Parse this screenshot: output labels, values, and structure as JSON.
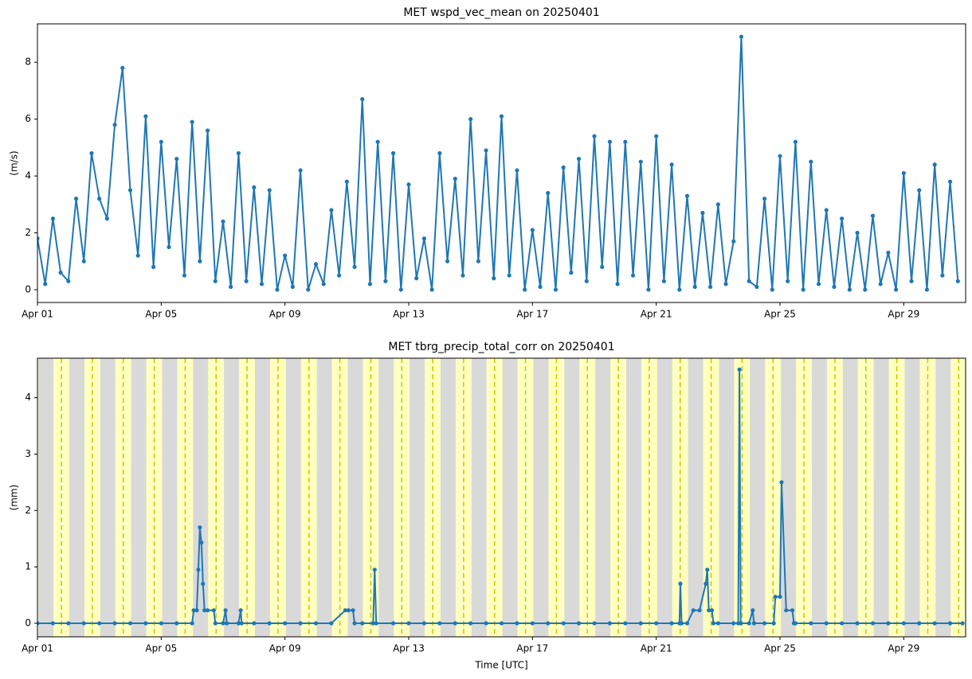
{
  "chart_data": [
    {
      "type": "line",
      "title": "MET wspd_vec_mean on 20250401",
      "ylabel": "(m/s)",
      "color": "#1f77b4",
      "x": [
        1,
        1.25,
        1.5,
        1.75,
        2,
        2.25,
        2.5,
        2.75,
        3,
        3.25,
        3.5,
        3.75,
        4,
        4.25,
        4.5,
        4.75,
        5,
        5.25,
        5.5,
        5.75,
        6,
        6.25,
        6.5,
        6.75,
        7,
        7.25,
        7.5,
        7.75,
        8,
        8.25,
        8.5,
        8.75,
        9,
        9.25,
        9.5,
        9.75,
        10,
        10.25,
        10.5,
        10.75,
        11,
        11.25,
        11.5,
        11.75,
        12,
        12.25,
        12.5,
        12.75,
        13,
        13.25,
        13.5,
        13.75,
        14,
        14.25,
        14.5,
        14.75,
        15,
        15.25,
        15.5,
        15.75,
        16,
        16.25,
        16.5,
        16.75,
        17,
        17.25,
        17.5,
        17.75,
        18,
        18.25,
        18.5,
        18.75,
        19,
        19.25,
        19.5,
        19.75,
        20,
        20.25,
        20.5,
        20.75,
        21,
        21.25,
        21.5,
        21.75,
        22,
        22.25,
        22.5,
        22.75,
        23,
        23.25,
        23.5,
        23.75,
        24,
        24.25,
        24.5,
        24.75,
        25,
        25.25,
        25.5,
        25.75,
        26,
        26.25,
        26.5,
        26.75,
        27,
        27.25,
        27.5,
        27.75,
        28,
        28.25,
        28.5,
        28.75,
        29,
        29.25,
        29.5,
        29.75,
        30,
        30.25,
        30.5,
        30.75
      ],
      "values": [
        1.8,
        0.2,
        2.5,
        0.6,
        0.3,
        3.2,
        1.0,
        4.8,
        3.2,
        2.5,
        5.8,
        7.8,
        3.5,
        1.2,
        6.1,
        0.8,
        5.2,
        1.5,
        4.6,
        0.5,
        5.9,
        1.0,
        5.6,
        0.3,
        2.4,
        0.1,
        4.8,
        0.3,
        3.6,
        0.2,
        3.5,
        0.0,
        1.2,
        0.1,
        4.2,
        0.0,
        0.9,
        0.2,
        2.8,
        0.5,
        3.8,
        0.8,
        6.7,
        0.2,
        5.2,
        0.3,
        4.8,
        0.0,
        3.7,
        0.4,
        1.8,
        0.0,
        4.8,
        1.0,
        3.9,
        0.5,
        6.0,
        1.0,
        4.9,
        0.4,
        6.1,
        0.5,
        4.2,
        0.0,
        2.1,
        0.1,
        3.4,
        0.0,
        4.3,
        0.6,
        4.6,
        0.3,
        5.4,
        0.8,
        5.2,
        0.2,
        5.2,
        0.5,
        4.5,
        0.0,
        5.4,
        0.3,
        4.4,
        0.0,
        3.3,
        0.1,
        2.7,
        0.1,
        3.0,
        0.2,
        1.7,
        8.9,
        0.3,
        0.1,
        3.2,
        0.0,
        4.7,
        0.3,
        5.2,
        0.0,
        4.5,
        0.2,
        2.8,
        0.1,
        2.5,
        0.0,
        2.0,
        0.0,
        2.6,
        0.2,
        1.3,
        0.0,
        4.1,
        0.3,
        3.5,
        0.0,
        4.4,
        0.5,
        3.8,
        0.3
      ],
      "xlim": [
        1,
        31
      ],
      "xticks": [
        {
          "value": 1,
          "label": "Apr 01"
        },
        {
          "value": 5,
          "label": "Apr 05"
        },
        {
          "value": 9,
          "label": "Apr 09"
        },
        {
          "value": 13,
          "label": "Apr 13"
        },
        {
          "value": 17,
          "label": "Apr 17"
        },
        {
          "value": 21,
          "label": "Apr 21"
        },
        {
          "value": 25,
          "label": "Apr 25"
        },
        {
          "value": 29,
          "label": "Apr 29"
        }
      ],
      "ylim": [
        -0.45,
        9.35
      ],
      "yticks": [
        0,
        2,
        4,
        6,
        8
      ]
    },
    {
      "type": "line",
      "title": "MET tbrg_precip_total_corr on 20250401",
      "ylabel": "(mm)",
      "xlabel": "Time [UTC]",
      "color": "#1f77b4",
      "night_color": "#d9d9d9",
      "day_color": "#ffffc0",
      "noon_color": "#c8c800",
      "sunrise_hour": 12.4,
      "sunset_hour": 24.7,
      "solar_noon_hour": 18.6,
      "x": [
        1,
        1.5,
        2,
        2.5,
        3,
        3.5,
        4,
        4.5,
        5,
        5.5,
        6,
        6.05,
        6.15,
        6.2,
        6.25,
        6.3,
        6.35,
        6.4,
        6.5,
        6.7,
        6.75,
        7,
        7.08,
        7.12,
        7.5,
        7.57,
        7.6,
        8,
        8.5,
        9,
        9.5,
        10,
        10.5,
        10.95,
        11.05,
        11.2,
        11.25,
        11.5,
        11.85,
        11.9,
        11.95,
        12.5,
        13,
        13.5,
        14,
        14.5,
        15,
        15.5,
        16,
        16.5,
        17,
        17.5,
        18,
        18.5,
        19,
        19.5,
        20,
        20.5,
        21,
        21.5,
        21.75,
        21.78,
        21.82,
        22,
        22.2,
        22.4,
        22.6,
        22.65,
        22.7,
        22.8,
        22.85,
        23,
        23.5,
        23.65,
        23.69,
        23.73,
        24,
        24.12,
        24.16,
        24.5,
        24.8,
        24.85,
        25.0,
        25.05,
        25.2,
        25.4,
        25.45,
        25.5,
        26,
        26.5,
        27,
        27.5,
        28,
        28.5,
        29,
        29.5,
        30,
        30.5,
        30.9
      ],
      "values": [
        0,
        0,
        0,
        0,
        0,
        0,
        0,
        0,
        0,
        0,
        0,
        0.23,
        0.23,
        0.95,
        1.7,
        1.43,
        0.7,
        0.23,
        0.23,
        0.23,
        0,
        0,
        0.23,
        0,
        0,
        0.23,
        0,
        0,
        0,
        0,
        0,
        0,
        0,
        0.23,
        0.23,
        0.23,
        0,
        0,
        0,
        0.95,
        0,
        0,
        0,
        0,
        0,
        0,
        0,
        0,
        0,
        0,
        0,
        0,
        0,
        0,
        0,
        0,
        0,
        0,
        0,
        0,
        0,
        0.7,
        0,
        0,
        0.23,
        0.23,
        0.7,
        0.95,
        0.23,
        0.23,
        0,
        0,
        0,
        0,
        4.5,
        0,
        0,
        0.23,
        0,
        0,
        0,
        0.47,
        0.47,
        2.5,
        0.23,
        0.23,
        0,
        0,
        0,
        0,
        0,
        0,
        0,
        0,
        0,
        0,
        0,
        0,
        0
      ],
      "xlim": [
        1,
        31
      ],
      "xticks": [
        {
          "value": 1,
          "label": "Apr 01"
        },
        {
          "value": 5,
          "label": "Apr 05"
        },
        {
          "value": 9,
          "label": "Apr 09"
        },
        {
          "value": 13,
          "label": "Apr 13"
        },
        {
          "value": 17,
          "label": "Apr 17"
        },
        {
          "value": 21,
          "label": "Apr 21"
        },
        {
          "value": 25,
          "label": "Apr 25"
        },
        {
          "value": 29,
          "label": "Apr 29"
        }
      ],
      "ylim": [
        -0.24,
        4.7
      ],
      "yticks": [
        0,
        1,
        2,
        3,
        4
      ]
    }
  ]
}
